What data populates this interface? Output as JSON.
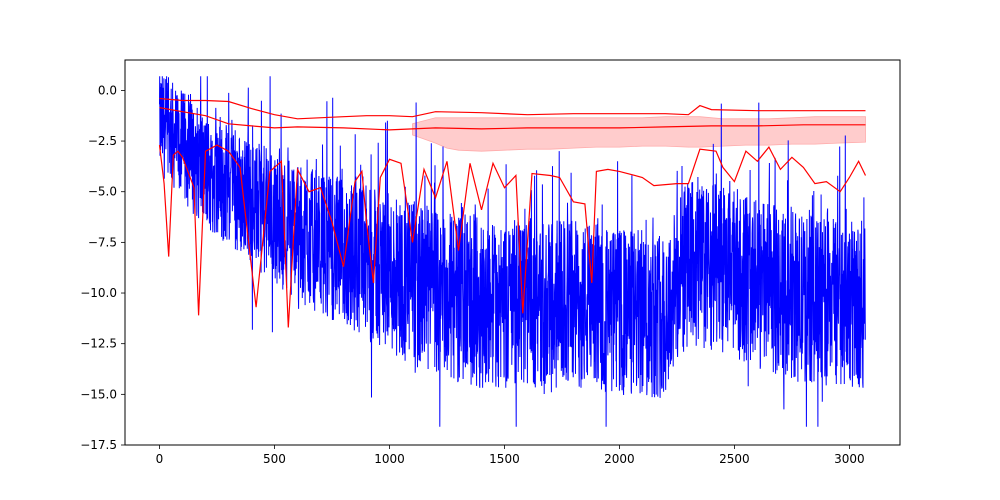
{
  "chart_data": {
    "type": "line",
    "title": "",
    "xlabel": "",
    "ylabel": "",
    "xlim": [
      -150,
      3220
    ],
    "ylim": [
      -17.5,
      1.5
    ],
    "x_ticks": [
      0,
      500,
      1000,
      1500,
      2000,
      2500,
      3000
    ],
    "y_ticks": [
      0.0,
      -2.5,
      -5.0,
      -7.5,
      -10.0,
      -12.5,
      -15.0,
      -17.5
    ],
    "x_tick_labels": [
      "0",
      "500",
      "1000",
      "1500",
      "2000",
      "2500",
      "3000"
    ],
    "y_tick_labels": [
      "0.0",
      "−2.5",
      "−5.0",
      "−7.5",
      "−10.0",
      "−12.5",
      "−15.0",
      "−17.5"
    ],
    "grid": false,
    "colors": {
      "raw": "#0000ff",
      "envelope": "#ff0000",
      "band": "#ffcccc"
    },
    "raw_series": {
      "color": "#0000ff",
      "n_points": 3070,
      "trend_x": [
        0,
        200,
        400,
        600,
        800,
        1000,
        1200,
        1400,
        1600,
        1800,
        2000,
        2200,
        2300,
        2500,
        2700,
        2900,
        3070
      ],
      "trend_y": [
        -1.5,
        -4.0,
        -5.5,
        -7.0,
        -8.0,
        -9.0,
        -10.0,
        -10.5,
        -10.5,
        -10.5,
        -11.0,
        -11.0,
        -8.5,
        -9.0,
        -10.0,
        -10.5,
        -10.5
      ],
      "min": -16.6,
      "max": 0.7
    },
    "series": [
      {
        "color": "#ff0000",
        "x": [
          0,
          100,
          200,
          300,
          400,
          500,
          600,
          800,
          900,
          1000,
          1100,
          1200,
          1400,
          1600,
          1800,
          2000,
          2200,
          2300,
          2350,
          2400,
          2600,
          2800,
          3000,
          3070
        ],
        "y": [
          -0.4,
          -0.5,
          -0.5,
          -0.55,
          -0.9,
          -1.2,
          -1.4,
          -1.3,
          -1.25,
          -1.25,
          -1.3,
          -1.05,
          -1.1,
          -1.2,
          -1.15,
          -1.15,
          -1.15,
          -1.2,
          -0.75,
          -0.95,
          -1.0,
          -1.0,
          -1.0,
          -1.0
        ]
      },
      {
        "color": "#ff0000",
        "x": [
          0,
          100,
          200,
          300,
          400,
          500,
          600,
          800,
          1000,
          1200,
          1400,
          1600,
          1800,
          2000,
          2200,
          2400,
          2600,
          2800,
          3000,
          3070
        ],
        "y": [
          -0.85,
          -1.05,
          -1.25,
          -1.65,
          -1.75,
          -1.85,
          -1.8,
          -1.85,
          -1.95,
          -1.85,
          -1.9,
          -1.85,
          -1.85,
          -1.85,
          -1.8,
          -1.75,
          -1.75,
          -1.7,
          -1.7,
          -1.7
        ]
      },
      {
        "color": "#ff0000",
        "x": [
          0,
          20,
          40,
          60,
          80,
          100,
          150,
          170,
          200,
          250,
          300,
          350,
          420,
          480,
          530,
          560,
          600,
          650,
          700,
          750,
          800,
          850,
          880,
          900,
          930,
          960,
          1000,
          1050,
          1100,
          1150,
          1200,
          1250,
          1300,
          1350,
          1400,
          1450,
          1500,
          1550,
          1580,
          1620,
          1700,
          1740,
          1800,
          1850,
          1880,
          1900,
          1950,
          2000,
          2100,
          2150,
          2250,
          2300,
          2350,
          2420,
          2450,
          2500,
          2550,
          2600,
          2650,
          2700,
          2750,
          2800,
          2850,
          2900,
          2960,
          3000,
          3040,
          3070
        ],
        "y": [
          -2.7,
          -4.6,
          -8.2,
          -3.2,
          -3.0,
          -3.3,
          -4.8,
          -11.1,
          -3.0,
          -2.7,
          -3.0,
          -3.8,
          -10.7,
          -4.0,
          -3.5,
          -11.7,
          -3.9,
          -5.0,
          -4.8,
          -6.5,
          -8.7,
          -4.5,
          -4.0,
          -6.5,
          -9.5,
          -4.3,
          -3.4,
          -3.6,
          -7.5,
          -3.9,
          -5.3,
          -3.5,
          -7.9,
          -3.6,
          -5.9,
          -3.6,
          -4.8,
          -4.2,
          -11.0,
          -4.1,
          -4.2,
          -4.3,
          -5.5,
          -5.6,
          -9.5,
          -4.0,
          -3.9,
          -4.0,
          -4.3,
          -4.7,
          -4.6,
          -4.6,
          -2.9,
          -3.0,
          -3.8,
          -4.5,
          -3.0,
          -3.5,
          -2.8,
          -3.9,
          -3.3,
          -3.8,
          -4.6,
          -4.5,
          -5.0,
          -4.3,
          -3.5,
          -4.2
        ]
      }
    ],
    "band": {
      "color": "#ffcccc",
      "x": [
        1100,
        1150,
        1200,
        1250,
        1300,
        1400,
        1500,
        1600,
        1700,
        1800,
        1900,
        2000,
        2100,
        2200,
        2300,
        2350,
        2450,
        2550,
        2650,
        2750,
        2850,
        2950,
        3070
      ],
      "upper": [
        -1.65,
        -1.5,
        -1.35,
        -1.35,
        -1.35,
        -1.35,
        -1.35,
        -1.35,
        -1.35,
        -1.35,
        -1.35,
        -1.35,
        -1.35,
        -1.3,
        -1.3,
        -1.3,
        -1.4,
        -1.4,
        -1.4,
        -1.35,
        -1.3,
        -1.3,
        -1.3
      ],
      "lower": [
        -2.2,
        -2.4,
        -2.6,
        -2.85,
        -2.95,
        -3.0,
        -2.95,
        -2.9,
        -2.9,
        -2.85,
        -2.8,
        -2.8,
        -2.75,
        -2.75,
        -2.8,
        -2.8,
        -2.75,
        -2.7,
        -2.7,
        -2.65,
        -2.65,
        -2.6,
        -2.55
      ]
    }
  }
}
